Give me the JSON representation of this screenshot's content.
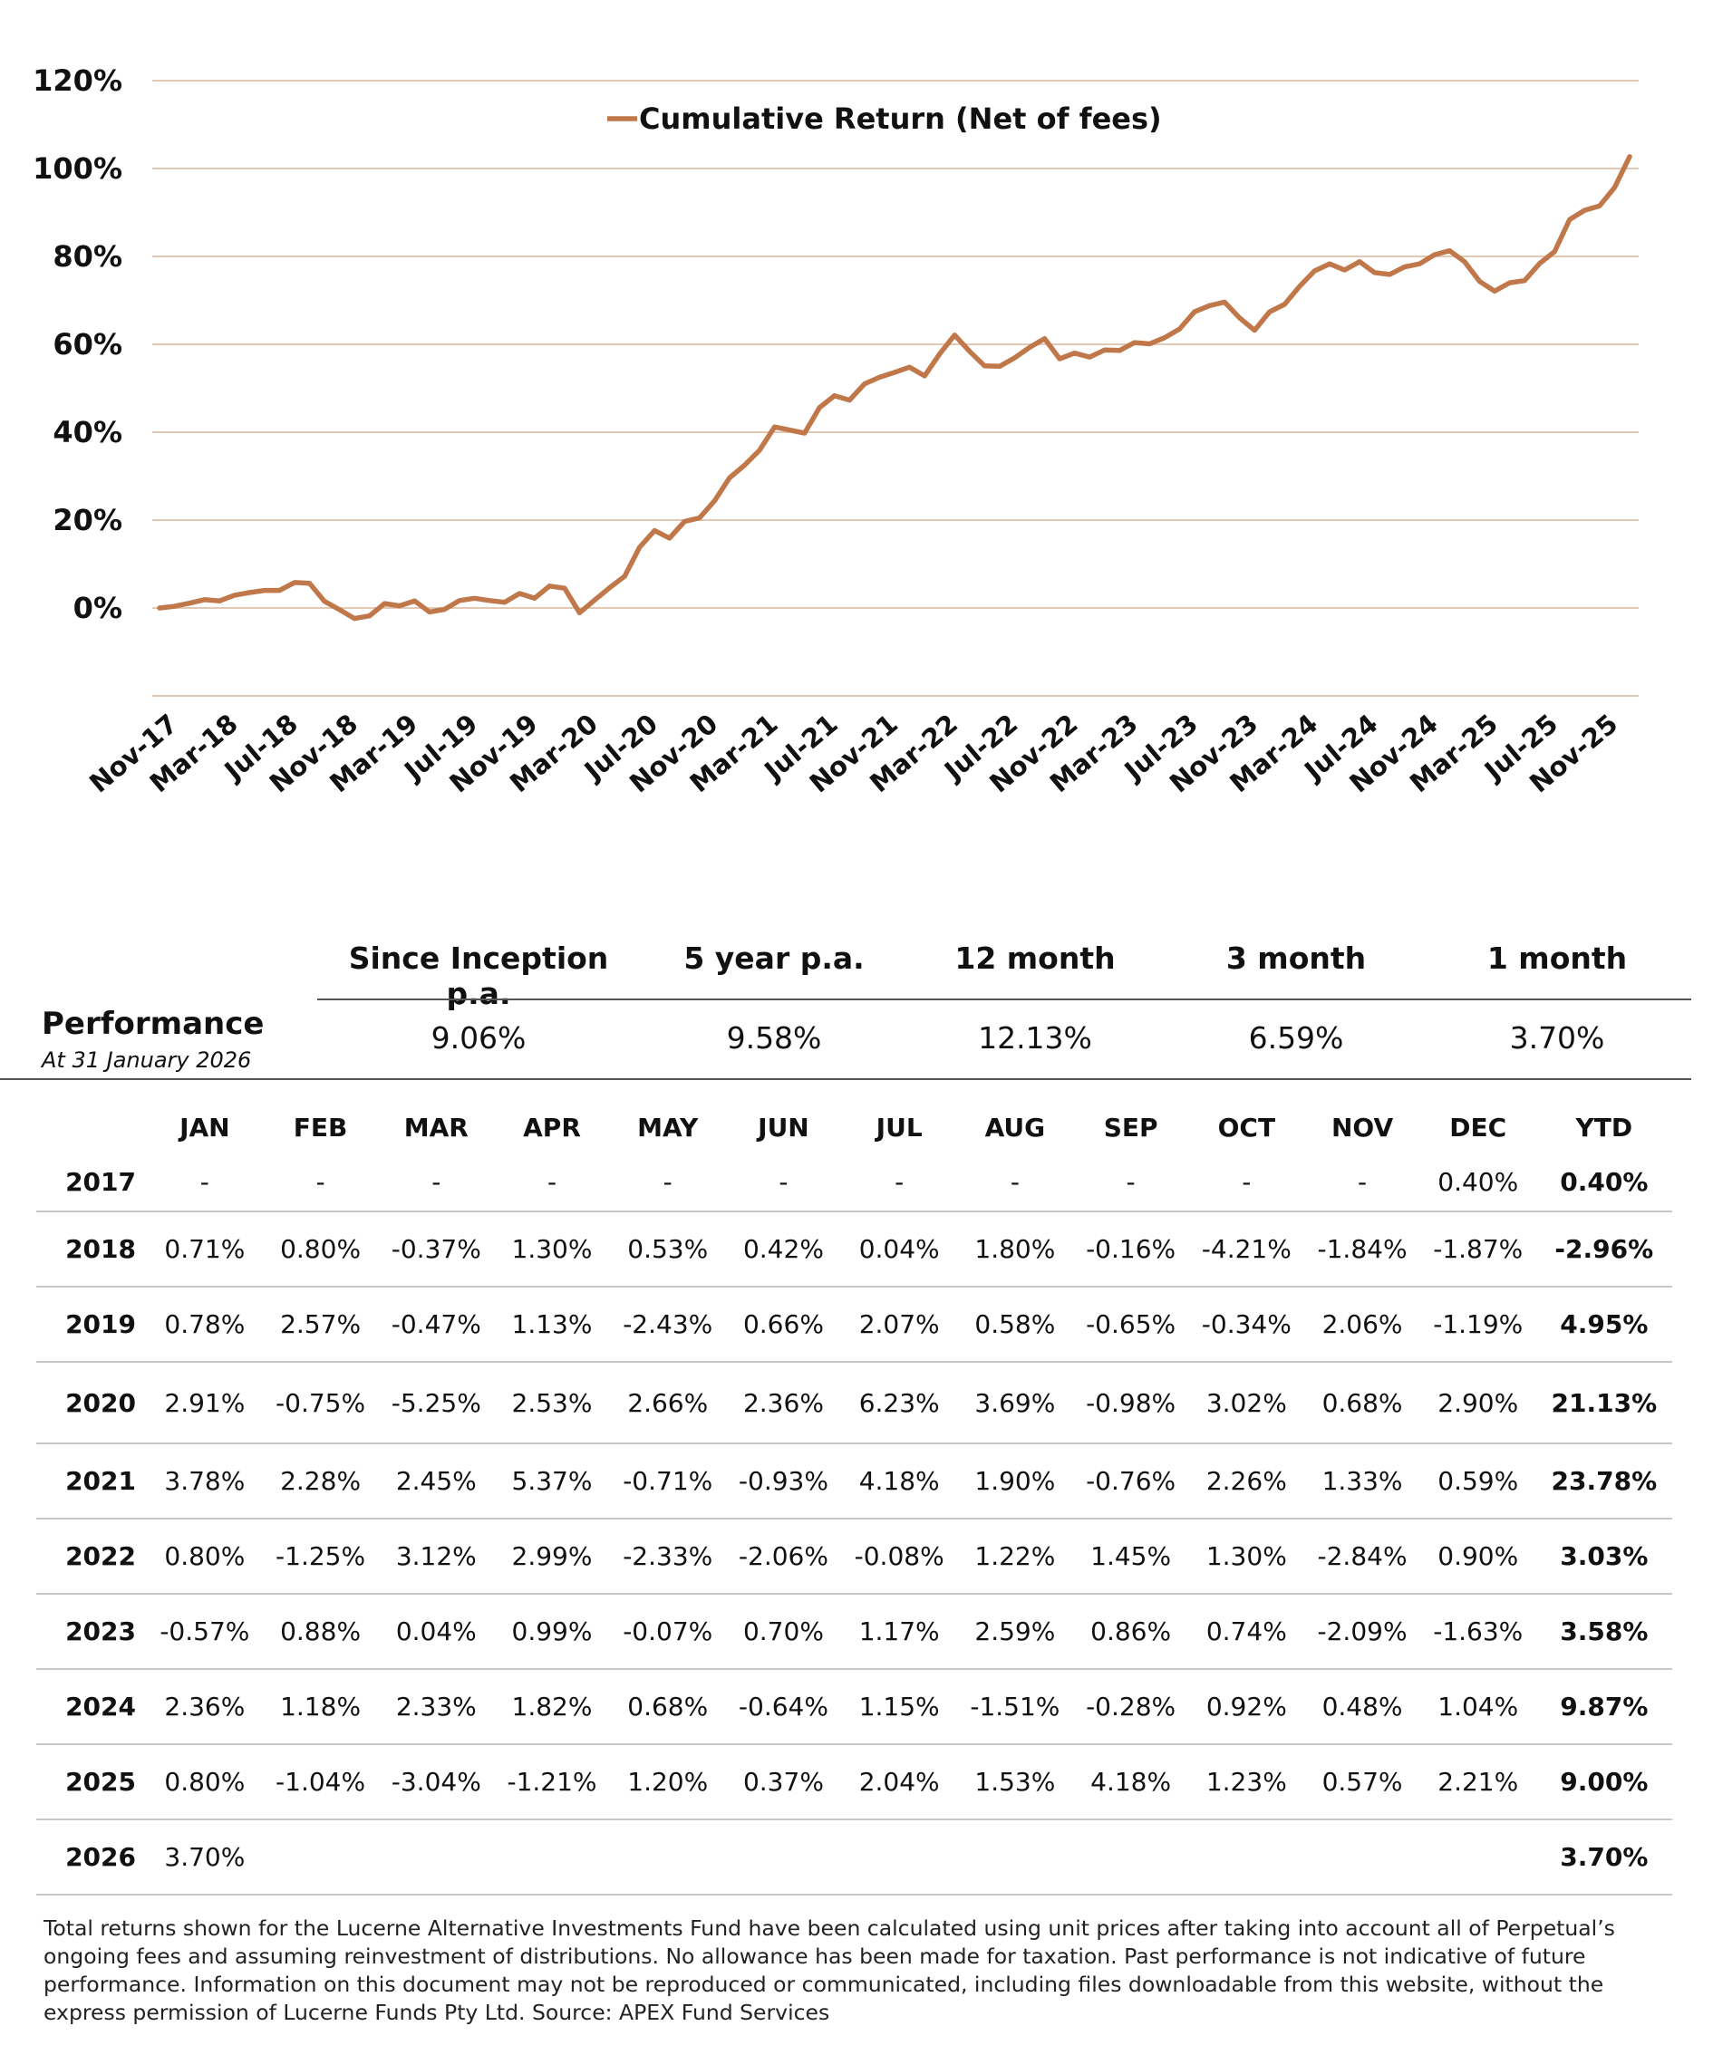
{
  "colors": {
    "line": "#C0784A",
    "grid": "#E2C9B6",
    "text": "#111111",
    "rule": "#C8C8C8"
  },
  "chart_data": {
    "type": "line",
    "legend": "Cumulative Return (Net of fees)",
    "ylim": [
      -20,
      120
    ],
    "y_ticks": [
      "120%",
      "100%",
      "80%",
      "60%",
      "40%",
      "20%",
      "0%"
    ],
    "y_tick_values": [
      120,
      100,
      80,
      60,
      40,
      20,
      0
    ],
    "x_tick_labels": [
      "Nov-17",
      "Mar-18",
      "Jul-18",
      "Nov-18",
      "Mar-19",
      "Jul-19",
      "Nov-19",
      "Mar-20",
      "Jul-20",
      "Nov-20",
      "Mar-21",
      "Jul-21",
      "Nov-21",
      "Mar-22",
      "Jul-22",
      "Nov-22",
      "Mar-23",
      "Jul-23",
      "Nov-23",
      "Mar-24",
      "Jul-24",
      "Nov-24",
      "Mar-25",
      "Jul-25",
      "Nov-25"
    ],
    "x_tick_index": [
      0,
      4,
      8,
      12,
      16,
      20,
      24,
      28,
      32,
      36,
      40,
      44,
      48,
      52,
      56,
      60,
      64,
      68,
      72,
      76,
      80,
      84,
      88,
      92,
      96
    ],
    "series": [
      {
        "name": "Cumulative Return (Net of fees)",
        "values": [
          0.0,
          0.4,
          1.1,
          1.9,
          1.6,
          2.9,
          3.5,
          4.0,
          4.0,
          5.8,
          5.6,
          1.5,
          -0.4,
          -2.4,
          -1.8,
          1.0,
          0.5,
          1.6,
          -0.9,
          -0.3,
          1.7,
          2.2,
          1.7,
          1.3,
          3.3,
          2.2,
          5.0,
          4.5,
          -1.1,
          1.8,
          4.6,
          7.2,
          13.8,
          17.6,
          15.9,
          19.7,
          20.5,
          24.4,
          29.6,
          32.5,
          35.9,
          41.2,
          40.5,
          39.8,
          45.6,
          48.3,
          47.3,
          51.0,
          52.5,
          53.6,
          54.8,
          52.8,
          57.8,
          62.1,
          58.4,
          55.1,
          55.0,
          56.9,
          59.3,
          61.3,
          56.7,
          58.0,
          57.1,
          58.7,
          58.6,
          60.4,
          60.1,
          61.5,
          63.5,
          67.4,
          68.8,
          69.6,
          66.0,
          63.2,
          67.4,
          69.1,
          73.2,
          76.7,
          78.3,
          76.9,
          78.8,
          76.3,
          75.9,
          77.6,
          78.3,
          80.4,
          81.3,
          78.8,
          74.3,
          72.1,
          74.0,
          74.5,
          78.4,
          81.1,
          88.4,
          90.5,
          91.5,
          95.7,
          102.7
        ]
      }
    ]
  },
  "summary": {
    "title": "Performance",
    "as_at": "At  31 January 2026",
    "headers": [
      "Since Inception p.a.",
      "5 year p.a.",
      "12 month",
      "3 month",
      "1 month"
    ],
    "values": [
      "9.06%",
      "9.58%",
      "12.13%",
      "6.59%",
      "3.70%"
    ]
  },
  "monthly": {
    "headers": [
      "",
      "JAN",
      "FEB",
      "MAR",
      "APR",
      "MAY",
      "JUN",
      "JUL",
      "AUG",
      "SEP",
      "OCT",
      "NOV",
      "DEC",
      "YTD"
    ],
    "rows": [
      [
        "2017",
        "-",
        "-",
        "-",
        "-",
        "-",
        "-",
        "-",
        "-",
        "-",
        "-",
        "-",
        "0.40%",
        "0.40%"
      ],
      [
        "2018",
        "0.71%",
        "0.80%",
        "-0.37%",
        "1.30%",
        "0.53%",
        "0.42%",
        "0.04%",
        "1.80%",
        "-0.16%",
        "-4.21%",
        "-1.84%",
        "-1.87%",
        "-2.96%"
      ],
      [
        "2019",
        "0.78%",
        "2.57%",
        "-0.47%",
        "1.13%",
        "-2.43%",
        "0.66%",
        "2.07%",
        "0.58%",
        "-0.65%",
        "-0.34%",
        "2.06%",
        "-1.19%",
        "4.95%"
      ],
      [
        "2020",
        "2.91%",
        "-0.75%",
        "-5.25%",
        "2.53%",
        "2.66%",
        "2.36%",
        "6.23%",
        "3.69%",
        "-0.98%",
        "3.02%",
        "0.68%",
        "2.90%",
        "21.13%"
      ],
      [
        "2021",
        "3.78%",
        "2.28%",
        "2.45%",
        "5.37%",
        "-0.71%",
        "-0.93%",
        "4.18%",
        "1.90%",
        "-0.76%",
        "2.26%",
        "1.33%",
        "0.59%",
        "23.78%"
      ],
      [
        "2022",
        "0.80%",
        "-1.25%",
        "3.12%",
        "2.99%",
        "-2.33%",
        "-2.06%",
        "-0.08%",
        "1.22%",
        "1.45%",
        "1.30%",
        "-2.84%",
        "0.90%",
        "3.03%"
      ],
      [
        "2023",
        "-0.57%",
        "0.88%",
        "0.04%",
        "0.99%",
        "-0.07%",
        "0.70%",
        "1.17%",
        "2.59%",
        "0.86%",
        "0.74%",
        "-2.09%",
        "-1.63%",
        "3.58%"
      ],
      [
        "2024",
        "2.36%",
        "1.18%",
        "2.33%",
        "1.82%",
        "0.68%",
        "-0.64%",
        "1.15%",
        "-1.51%",
        "-0.28%",
        "0.92%",
        "0.48%",
        "1.04%",
        "9.87%"
      ],
      [
        "2025",
        "0.80%",
        "-1.04%",
        "-3.04%",
        "-1.21%",
        "1.20%",
        "0.37%",
        "2.04%",
        "1.53%",
        "4.18%",
        "1.23%",
        "0.57%",
        "2.21%",
        "9.00%"
      ],
      [
        "2026",
        "3.70%",
        "",
        "",
        "",
        "",
        "",
        "",
        "",
        "",
        "",
        "",
        "",
        "3.70%"
      ]
    ]
  },
  "footnote": "Total returns shown for the Lucerne Alternative Investments Fund have been calculated using unit prices after taking into account all of Perpetual’s ongoing fees and assuming reinvestment of distributions. No allowance has been made for taxation. Past performance is not indicative of future performance. Information on this document may not be reproduced or communicated, including files downloadable from this website, without the express permission of Lucerne Funds Pty Ltd. Source: APEX Fund Services"
}
